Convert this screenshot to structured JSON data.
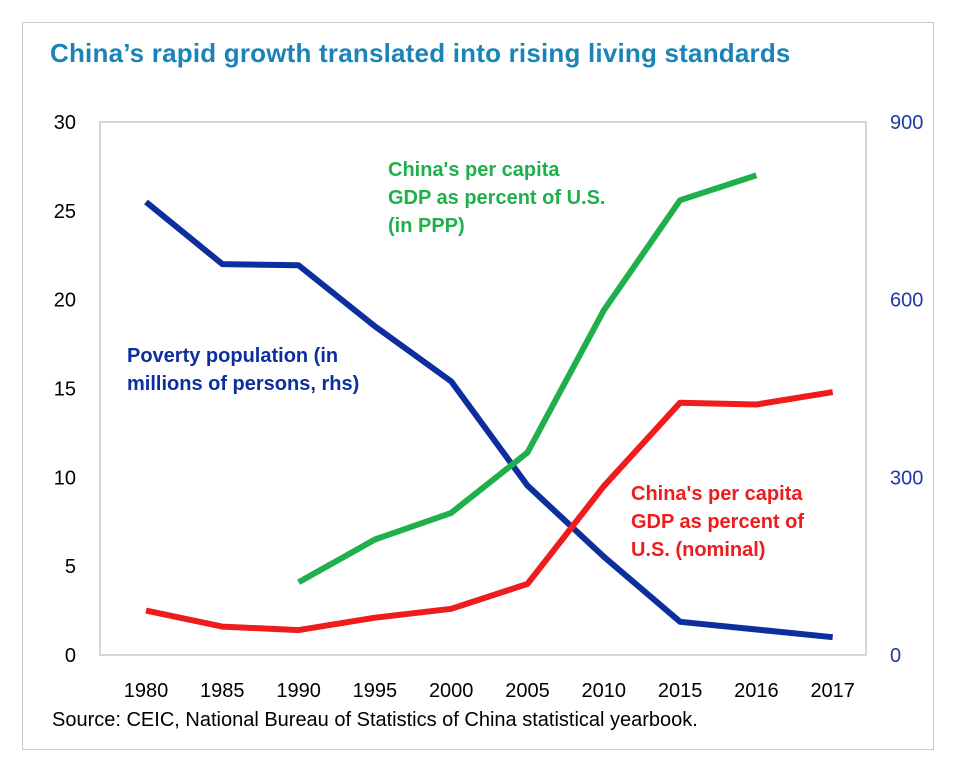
{
  "title": "China’s rapid growth translated into rising living standards",
  "source": "Source: CEIC, National Bureau of Statistics of China statistical yearbook.",
  "colors": {
    "poverty": "#0d2f9e",
    "ppp": "#1fb04b",
    "nominal": "#ee1c1c",
    "rhs_ticks": "#1f3aa8",
    "title": "#1a84b8"
  },
  "chart_data": {
    "type": "line",
    "categories": [
      "1980",
      "1985",
      "1990",
      "1995",
      "2000",
      "2005",
      "2010",
      "2015",
      "2016",
      "2017"
    ],
    "y_left": {
      "ylim": [
        0,
        30
      ],
      "ticks": [
        "0",
        "5",
        "10",
        "15",
        "20",
        "25",
        "30"
      ]
    },
    "y_right": {
      "ylim": [
        0,
        900
      ],
      "ticks": [
        "0",
        "300",
        "600",
        "900"
      ]
    },
    "series": [
      {
        "name": "Poverty population (in millions of persons, rhs)",
        "axis": "right",
        "color_key": "poverty",
        "values": [
          765,
          660,
          658,
          555,
          462,
          286,
          166,
          56,
          43,
          30
        ]
      },
      {
        "name": "China's per capita GDP as percent of U.S. (in PPP)",
        "axis": "left",
        "color_key": "ppp",
        "values": [
          null,
          null,
          4.1,
          6.5,
          8.0,
          11.4,
          19.4,
          25.6,
          27.0,
          null
        ]
      },
      {
        "name": "China's per capita GDP as percent of U.S. (nominal)",
        "axis": "left",
        "color_key": "nominal",
        "values": [
          2.5,
          1.6,
          1.4,
          2.1,
          2.6,
          4.0,
          9.5,
          14.2,
          14.1,
          14.8
        ]
      }
    ],
    "annotations": {
      "ppp": [
        "China's per capita",
        "GDP as percent of U.S.",
        "(in PPP)"
      ],
      "poverty": [
        "Poverty population (in",
        "millions of persons, rhs)"
      ],
      "nominal": [
        "China's per capita",
        "GDP as percent of",
        "U.S. (nominal)"
      ]
    }
  }
}
